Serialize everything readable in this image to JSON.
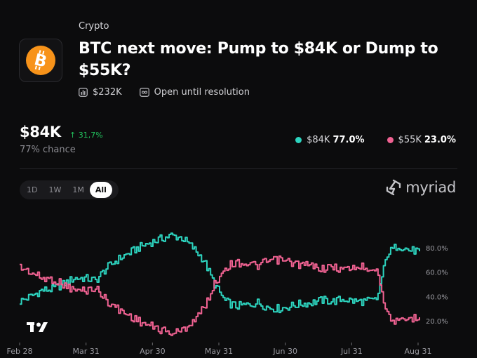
{
  "market": {
    "category": "Crypto",
    "title": "BTC next move: Pump to $84K or Dump to $55K?",
    "volume": "$232K",
    "status": "Open until resolution",
    "logo_icon": "bitcoin-icon"
  },
  "summary": {
    "price": "$84K",
    "change": "↑ 31,7%",
    "chance": "77% chance"
  },
  "legend": [
    {
      "label": "$84K",
      "value": "77.0%",
      "color": "#2dd4bf"
    },
    {
      "label": "$55K",
      "value": "23.0%",
      "color": "#f06292"
    }
  ],
  "ranges": [
    "1D",
    "1W",
    "1M",
    "All"
  ],
  "active_range": "All",
  "brand": "myriad",
  "chart_data": {
    "type": "line",
    "x_ticks": [
      "Feb 28",
      "Mar 31",
      "Apr 30",
      "May 31",
      "Jun 30",
      "Jul 31",
      "Aug 31"
    ],
    "y_ticks": [
      "20.0%",
      "40.0%",
      "60.0%",
      "80.0%"
    ],
    "ylim": [
      0,
      100
    ],
    "y_unit": "%",
    "grid": false,
    "series": [
      {
        "name": "$84K",
        "color": "#2dd4bf",
        "x": [
          "Feb 28",
          "Mar 5",
          "Mar 10",
          "Mar 15",
          "Mar 20",
          "Mar 25",
          "Mar 31",
          "Apr 5",
          "Apr 10",
          "Apr 15",
          "Apr 20",
          "Apr 25",
          "Apr 30",
          "May 5",
          "May 10",
          "May 15",
          "May 20",
          "May 25",
          "May 31",
          "Jun 5",
          "Jun 10",
          "Jun 15",
          "Jun 20",
          "Jun 25",
          "Jun 30",
          "Jul 5",
          "Jul 10",
          "Jul 15",
          "Jul 20",
          "Jul 25",
          "Jul 31",
          "Aug 5",
          "Aug 10",
          "Aug 15",
          "Aug 20",
          "Aug 25",
          "Aug 31",
          "Sep 3"
        ],
        "values": [
          36,
          40,
          45,
          46,
          50,
          55,
          55,
          53,
          63,
          70,
          75,
          80,
          84,
          87,
          90,
          88,
          80,
          70,
          50,
          36,
          32,
          33,
          35,
          31,
          30,
          32,
          34,
          35,
          37,
          36,
          38,
          36,
          36,
          37,
          75,
          82,
          78,
          77
        ]
      },
      {
        "name": "$55K",
        "color": "#f06292",
        "x": [
          "Feb 28",
          "Mar 5",
          "Mar 10",
          "Mar 15",
          "Mar 20",
          "Mar 25",
          "Mar 31",
          "Apr 5",
          "Apr 10",
          "Apr 15",
          "Apr 20",
          "Apr 25",
          "Apr 30",
          "May 5",
          "May 10",
          "May 15",
          "May 20",
          "May 25",
          "May 31",
          "Jun 5",
          "Jun 10",
          "Jun 15",
          "Jun 20",
          "Jun 25",
          "Jun 30",
          "Jul 5",
          "Jul 10",
          "Jul 15",
          "Jul 20",
          "Jul 25",
          "Jul 31",
          "Aug 5",
          "Aug 10",
          "Aug 15",
          "Aug 20",
          "Aug 25",
          "Aug 31",
          "Sep 3"
        ],
        "values": [
          64,
          60,
          55,
          54,
          50,
          45,
          45,
          47,
          37,
          30,
          25,
          20,
          16,
          13,
          10,
          12,
          20,
          30,
          50,
          64,
          68,
          67,
          65,
          69,
          70,
          68,
          66,
          65,
          63,
          64,
          62,
          64,
          64,
          63,
          25,
          18,
          22,
          23
        ]
      }
    ]
  }
}
